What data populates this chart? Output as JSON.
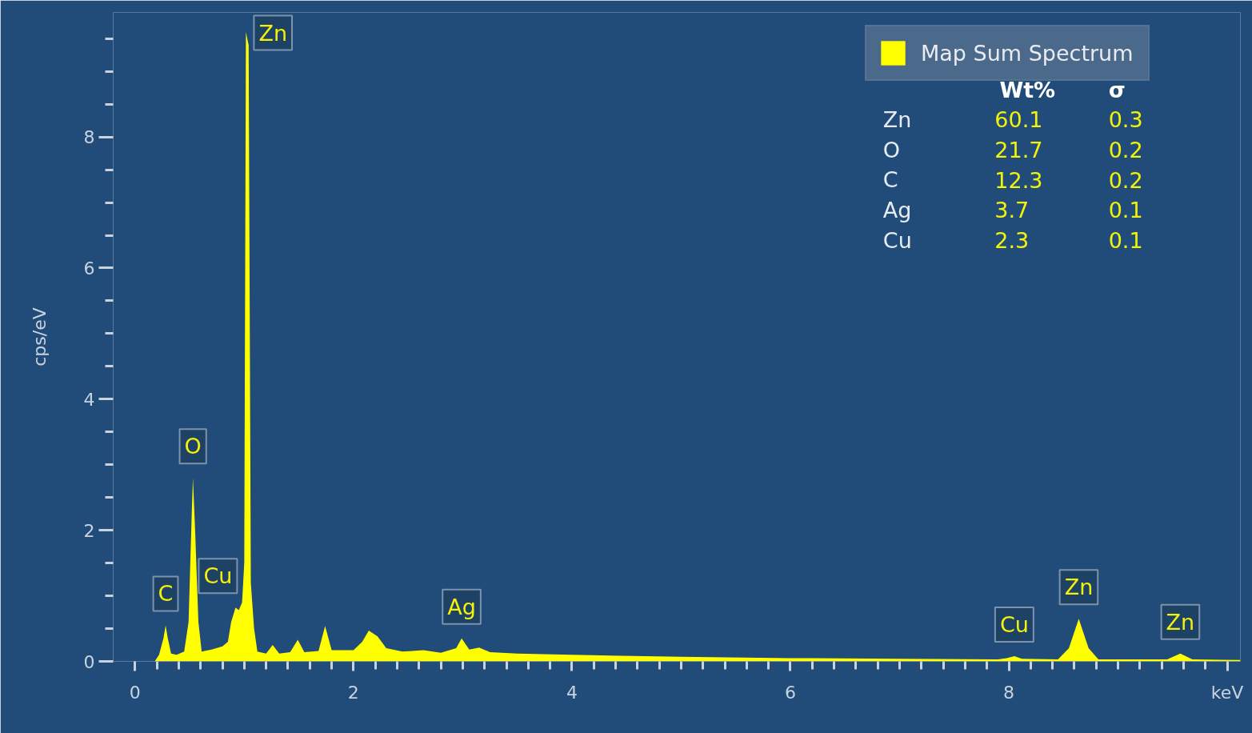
{
  "chart_data": {
    "type": "area",
    "ylabel": "cps/eV",
    "xlim": [
      -0.2,
      10.12
    ],
    "ylim": [
      0,
      9.9
    ],
    "xticks": [
      0,
      {
        "value": 0.2,
        "label": null
      },
      {
        "value": 0.4,
        "label": null
      },
      {
        "value": 0.6,
        "label": null
      },
      {
        "value": 0.8,
        "label": null
      },
      {
        "value": 1,
        "label": null
      },
      {
        "value": 1.2,
        "label": null
      },
      {
        "value": 1.4,
        "label": null
      },
      {
        "value": 1.6,
        "label": null
      },
      {
        "value": 1.8,
        "label": null
      },
      2,
      {
        "value": 2.2,
        "label": null
      },
      {
        "value": 2.4,
        "label": null
      },
      {
        "value": 2.6,
        "label": null
      },
      {
        "value": 2.8,
        "label": null
      },
      {
        "value": 3,
        "label": null
      },
      {
        "value": 3.2,
        "label": null
      },
      {
        "value": 3.4,
        "label": null
      },
      {
        "value": 3.6,
        "label": null
      },
      {
        "value": 3.8,
        "label": null
      },
      4,
      {
        "value": 4.2,
        "label": null
      },
      {
        "value": 4.4,
        "label": null
      },
      {
        "value": 4.6,
        "label": null
      },
      {
        "value": 4.8,
        "label": null
      },
      {
        "value": 5,
        "label": null
      },
      {
        "value": 5.2,
        "label": null
      },
      {
        "value": 5.4,
        "label": null
      },
      {
        "value": 5.6,
        "label": null
      },
      {
        "value": 5.8,
        "label": null
      },
      6,
      {
        "value": 6.2,
        "label": null
      },
      {
        "value": 6.4,
        "label": null
      },
      {
        "value": 6.6,
        "label": null
      },
      {
        "value": 6.8,
        "label": null
      },
      {
        "value": 7,
        "label": null
      },
      {
        "value": 7.2,
        "label": null
      },
      {
        "value": 7.4,
        "label": null
      },
      {
        "value": 7.6,
        "label": null
      },
      {
        "value": 7.8,
        "label": null
      },
      8,
      {
        "value": 8.2,
        "label": null
      },
      {
        "value": 8.4,
        "label": null
      },
      {
        "value": 8.6,
        "label": null
      },
      {
        "value": 8.8,
        "label": null
      },
      {
        "value": 9,
        "label": null
      },
      {
        "value": 9.2,
        "label": null
      },
      {
        "value": 9.4,
        "label": null
      },
      {
        "value": 9.6,
        "label": null
      },
      {
        "value": 9.8,
        "label": null
      },
      {
        "value": 10,
        "label": "keV"
      }
    ],
    "yticks": [
      0,
      {
        "value": 0.5,
        "label": null
      },
      {
        "value": 1,
        "label": null
      },
      {
        "value": 1.5,
        "label": null
      },
      2,
      {
        "value": 2.5,
        "label": null
      },
      {
        "value": 3,
        "label": null
      },
      {
        "value": 3.5,
        "label": null
      },
      4,
      {
        "value": 4.5,
        "label": null
      },
      {
        "value": 5,
        "label": null
      },
      {
        "value": 5.5,
        "label": null
      },
      6,
      {
        "value": 6.5,
        "label": null
      },
      {
        "value": 7,
        "label": null
      },
      {
        "value": 7.5,
        "label": null
      },
      8,
      {
        "value": 8.5,
        "label": null
      },
      {
        "value": 9,
        "label": null
      },
      {
        "value": 9.5,
        "label": null
      }
    ],
    "grid": false,
    "legend": "top right",
    "series": [
      {
        "name": "Map Sum Spectrum",
        "color": "#ffff00",
        "x": [
          0.18,
          0.22,
          0.26,
          0.28,
          0.3,
          0.33,
          0.38,
          0.45,
          0.49,
          0.52,
          0.53,
          0.55,
          0.58,
          0.61,
          0.7,
          0.8,
          0.85,
          0.88,
          0.92,
          0.95,
          0.98,
          1.0,
          1.015,
          1.04,
          1.06,
          1.09,
          1.12,
          1.2,
          1.26,
          1.32,
          1.42,
          1.49,
          1.55,
          1.68,
          1.74,
          1.8,
          2.0,
          2.08,
          2.14,
          2.22,
          2.3,
          2.45,
          2.64,
          2.8,
          2.94,
          2.99,
          3.06,
          3.15,
          3.25,
          3.5,
          4.0,
          5.0,
          6.0,
          7.0,
          7.9,
          7.98,
          8.05,
          8.12,
          8.45,
          8.55,
          8.64,
          8.73,
          8.82,
          9.45,
          9.57,
          9.68,
          10.12
        ],
        "values": [
          0,
          0.1,
          0.35,
          0.55,
          0.35,
          0.12,
          0.1,
          0.15,
          0.6,
          2.3,
          2.8,
          2.0,
          0.6,
          0.15,
          0.18,
          0.23,
          0.3,
          0.6,
          0.82,
          0.78,
          0.9,
          1.5,
          9.6,
          9.4,
          1.2,
          0.5,
          0.15,
          0.12,
          0.25,
          0.12,
          0.14,
          0.33,
          0.14,
          0.16,
          0.54,
          0.17,
          0.17,
          0.3,
          0.47,
          0.38,
          0.2,
          0.15,
          0.17,
          0.13,
          0.2,
          0.35,
          0.18,
          0.21,
          0.14,
          0.12,
          0.1,
          0.07,
          0.05,
          0.04,
          0.03,
          0.05,
          0.08,
          0.04,
          0.03,
          0.2,
          0.65,
          0.2,
          0.03,
          0.03,
          0.12,
          0.03,
          0.02
        ]
      }
    ],
    "annotations": [
      {
        "text": "C",
        "x": 0.28,
        "y": 0.55
      },
      {
        "text": "O",
        "x": 0.53,
        "y": 2.8
      },
      {
        "text": "Cu",
        "x": 0.92,
        "y": 0.82
      },
      {
        "text": "Zn",
        "x": 1.015,
        "y": 9.6
      },
      {
        "text": "Ag",
        "x": 2.99,
        "y": 0.35
      },
      {
        "text": "Cu",
        "x": 8.05,
        "y": 0.08
      },
      {
        "text": "Zn",
        "x": 8.64,
        "y": 0.65
      },
      {
        "text": "Zn",
        "x": 9.57,
        "y": 0.12
      },
      "Wt%",
      "σ",
      "Zn",
      "60.1",
      "0.3",
      "O",
      "21.7",
      "0.2",
      "C",
      "12.3",
      "0.2",
      "Ag",
      "3.7",
      "0.1",
      "Cu",
      "2.3",
      "0.1"
    ]
  }
}
